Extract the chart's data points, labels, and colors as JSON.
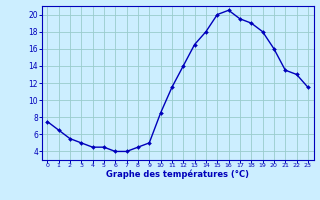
{
  "hours": [
    0,
    1,
    2,
    3,
    4,
    5,
    6,
    7,
    8,
    9,
    10,
    11,
    12,
    13,
    14,
    15,
    16,
    17,
    18,
    19,
    20,
    21,
    22,
    23
  ],
  "temps": [
    7.5,
    6.5,
    5.5,
    5.0,
    4.5,
    4.5,
    4.0,
    4.0,
    4.5,
    5.0,
    8.5,
    11.5,
    14.0,
    16.5,
    18.0,
    20.0,
    20.5,
    19.5,
    19.0,
    18.0,
    16.0,
    13.5,
    13.0,
    11.5
  ],
  "xlabel": "Graphe des températures (°C)",
  "ylim": [
    3,
    21
  ],
  "xlim": [
    -0.5,
    23.5
  ],
  "yticks": [
    4,
    6,
    8,
    10,
    12,
    14,
    16,
    18,
    20
  ],
  "xticks": [
    0,
    1,
    2,
    3,
    4,
    5,
    6,
    7,
    8,
    9,
    10,
    11,
    12,
    13,
    14,
    15,
    16,
    17,
    18,
    19,
    20,
    21,
    22,
    23
  ],
  "line_color": "#0000bb",
  "marker_color": "#0000bb",
  "bg_color": "#cceeff",
  "grid_color": "#99cccc",
  "axis_color": "#0000bb",
  "tick_color": "#0000bb",
  "label_color": "#0000bb"
}
